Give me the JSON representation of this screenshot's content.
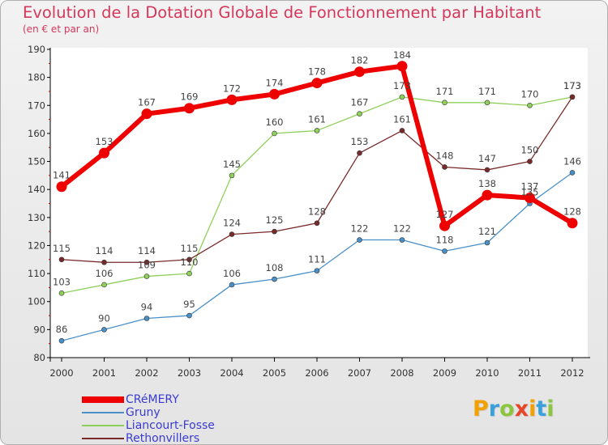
{
  "header": {
    "title": "Evolution de la Dotation Globale de Fonctionnement par Habitant",
    "subtitle": "(en € et par an)"
  },
  "logo": {
    "text": "Proxiti"
  },
  "colors": {
    "CRéMERY": "#ee0000",
    "Gruny": "#4a90c8",
    "Liancourt-Fosse": "#8fd05a",
    "Rethonvillers": "#7a2a2a",
    "title": "#d6385c",
    "legend_text": "#3b3bd1"
  },
  "chart_data": {
    "type": "line",
    "title": "Evolution de la Dotation Globale de Fonctionnement par Habitant",
    "subtitle": "(en € et par an)",
    "xlabel": "",
    "ylabel": "",
    "x": [
      "2000",
      "2001",
      "2002",
      "2003",
      "2004",
      "2005",
      "2006",
      "2007",
      "2008",
      "2009",
      "2010",
      "2011",
      "2012"
    ],
    "ylim": [
      80,
      190
    ],
    "yticks": [
      80,
      90,
      100,
      110,
      120,
      130,
      140,
      150,
      160,
      170,
      180,
      190
    ],
    "grid": false,
    "legend_position": "bottom-left",
    "series": [
      {
        "name": "CRéMERY",
        "values": [
          141,
          153,
          167,
          169,
          172,
          174,
          178,
          182,
          184,
          127,
          138,
          137,
          128
        ]
      },
      {
        "name": "Gruny",
        "values": [
          86,
          90,
          94,
          95,
          106,
          108,
          111,
          122,
          122,
          118,
          121,
          135,
          146
        ]
      },
      {
        "name": "Liancourt-Fosse",
        "values": [
          103,
          106,
          109,
          110,
          145,
          160,
          161,
          167,
          173,
          171,
          171,
          170,
          173
        ]
      },
      {
        "name": "Rethonvillers",
        "values": [
          115,
          114,
          114,
          115,
          124,
          125,
          128,
          153,
          161,
          148,
          147,
          150,
          173
        ]
      }
    ]
  }
}
